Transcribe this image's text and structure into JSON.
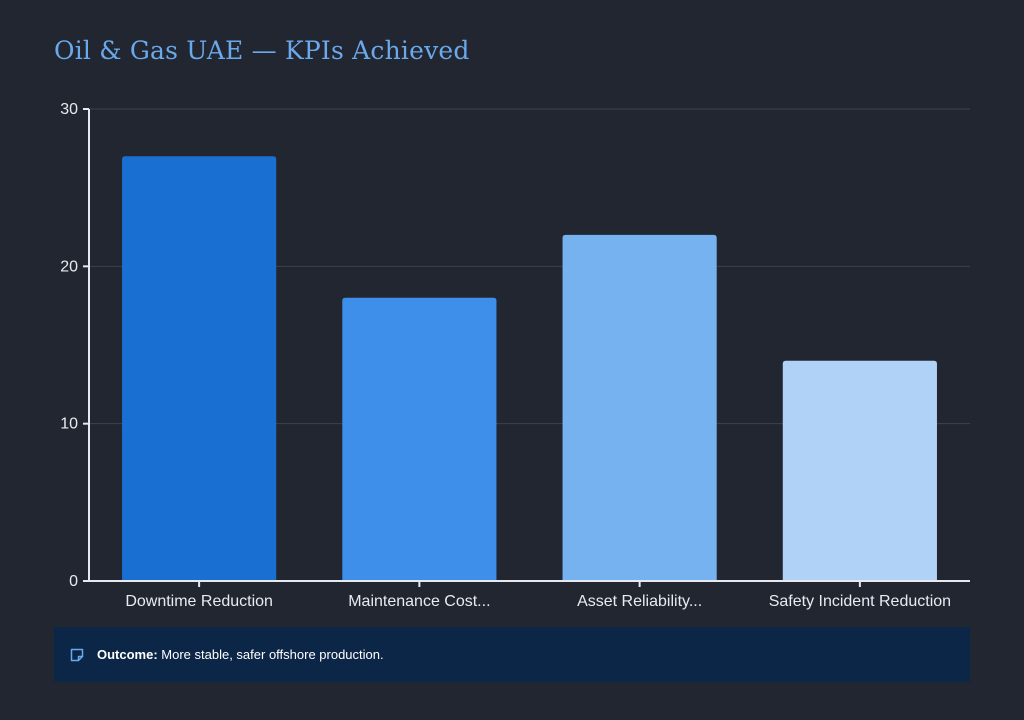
{
  "chart_data": {
    "type": "bar",
    "title": "Oil & Gas UAE — KPIs Achieved",
    "xlabel": "",
    "ylabel": "",
    "categories": [
      "Downtime Reduction",
      "Maintenance Cost...",
      "Asset Reliability...",
      "Safety Incident Reduction"
    ],
    "values": [
      27,
      18,
      22,
      14
    ],
    "ylim": [
      0,
      30
    ],
    "yticks": [
      "0",
      "10",
      "20",
      "30"
    ],
    "bar_colors": [
      "#1a6fd2",
      "#3d8fea",
      "#76b1f0",
      "#b0d2f6"
    ],
    "grid": true,
    "legend": "none"
  },
  "outcome": {
    "label": "Outcome:",
    "text": " More stable, safer offshore production.",
    "icon": "note-icon"
  },
  "colors": {
    "background": "#222630",
    "title": "#6aa9ec",
    "outcome_bg": "#0c2648",
    "gridline": "#3d424d",
    "axis": "#e6e9ef"
  }
}
